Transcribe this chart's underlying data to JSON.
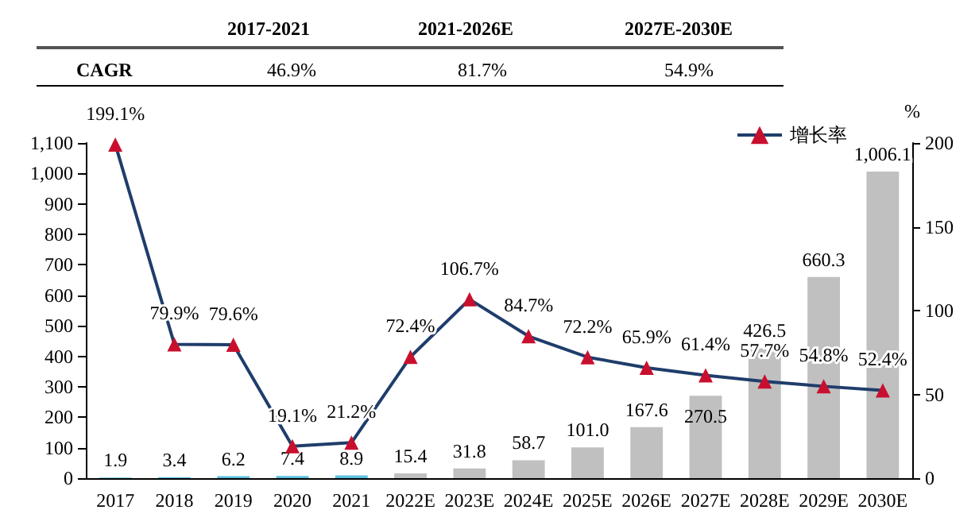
{
  "chart_data": {
    "type": "bar",
    "categories": [
      "2017",
      "2018",
      "2019",
      "2020",
      "2021",
      "2022E",
      "2023E",
      "2024E",
      "2025E",
      "2026E",
      "2027E",
      "2028E",
      "2029E",
      "2030E"
    ],
    "annotations": [
      "2017-2021",
      "2021-2026E",
      "2027E-2030E",
      "CAGR",
      "46.9%",
      "81.7%",
      "54.9%"
    ],
    "y2label": "%",
    "series": [
      {
        "colors": [
          "#5bc0de",
          "#5bc0de",
          "#5bc0de",
          "#5bc0de",
          "#5bc0de",
          "#c0c0c0",
          "#c0c0c0",
          "#c0c0c0",
          "#c0c0c0",
          "#c0c0c0",
          "#c0c0c0",
          "#c0c0c0",
          "#c0c0c0",
          "#c0c0c0"
        ],
        "values": [
          1.9,
          3.4,
          6.2,
          7.4,
          8.9,
          15.4,
          31.8,
          58.7,
          101.0,
          167.6,
          270.5,
          426.5,
          660.3,
          1006.1
        ],
        "value_labels": [
          "1.9",
          "3.4",
          "6.2",
          "7.4",
          "8.9",
          "15.4",
          "31.8",
          "58.7",
          "101.0",
          "167.6",
          "270.5",
          "426.5",
          "660.3",
          "1,006.1"
        ]
      },
      {
        "type": "line",
        "name": "增长率",
        "axis": "y2",
        "color": "#1f3d6b",
        "colors": [
          "#c8102e",
          "#c8102e",
          "#c8102e",
          "#c8102e",
          "#c8102e",
          "#c8102e",
          "#c8102e",
          "#c8102e",
          "#c8102e",
          "#c8102e",
          "#c8102e",
          "#c8102e",
          "#c8102e",
          "#c8102e"
        ],
        "values": [
          199.1,
          79.9,
          79.6,
          19.1,
          21.2,
          72.4,
          106.7,
          84.7,
          72.2,
          65.9,
          61.4,
          57.7,
          54.8,
          52.4
        ],
        "value_labels": [
          "199.1%",
          "79.9%",
          "79.6%",
          "19.1%",
          "21.2%",
          "72.4%",
          "106.7%",
          "84.7%",
          "72.2%",
          "65.9%",
          "61.4%",
          "57.7%",
          "54.8%",
          "52.4%"
        ]
      }
    ],
    "ylim": [
      0,
      1100
    ],
    "yticks": [
      0,
      100,
      200,
      300,
      400,
      500,
      600,
      700,
      800,
      900,
      {
        "value": 1000,
        "label": "1,000"
      },
      {
        "value": 1100,
        "label": "1,100"
      }
    ],
    "y2lim": [
      0,
      200
    ],
    "y2ticks": [
      0,
      50,
      100,
      150,
      200
    ],
    "legend": "top right",
    "marker": "triangle",
    "line_style": "solid",
    "grid": false
  }
}
